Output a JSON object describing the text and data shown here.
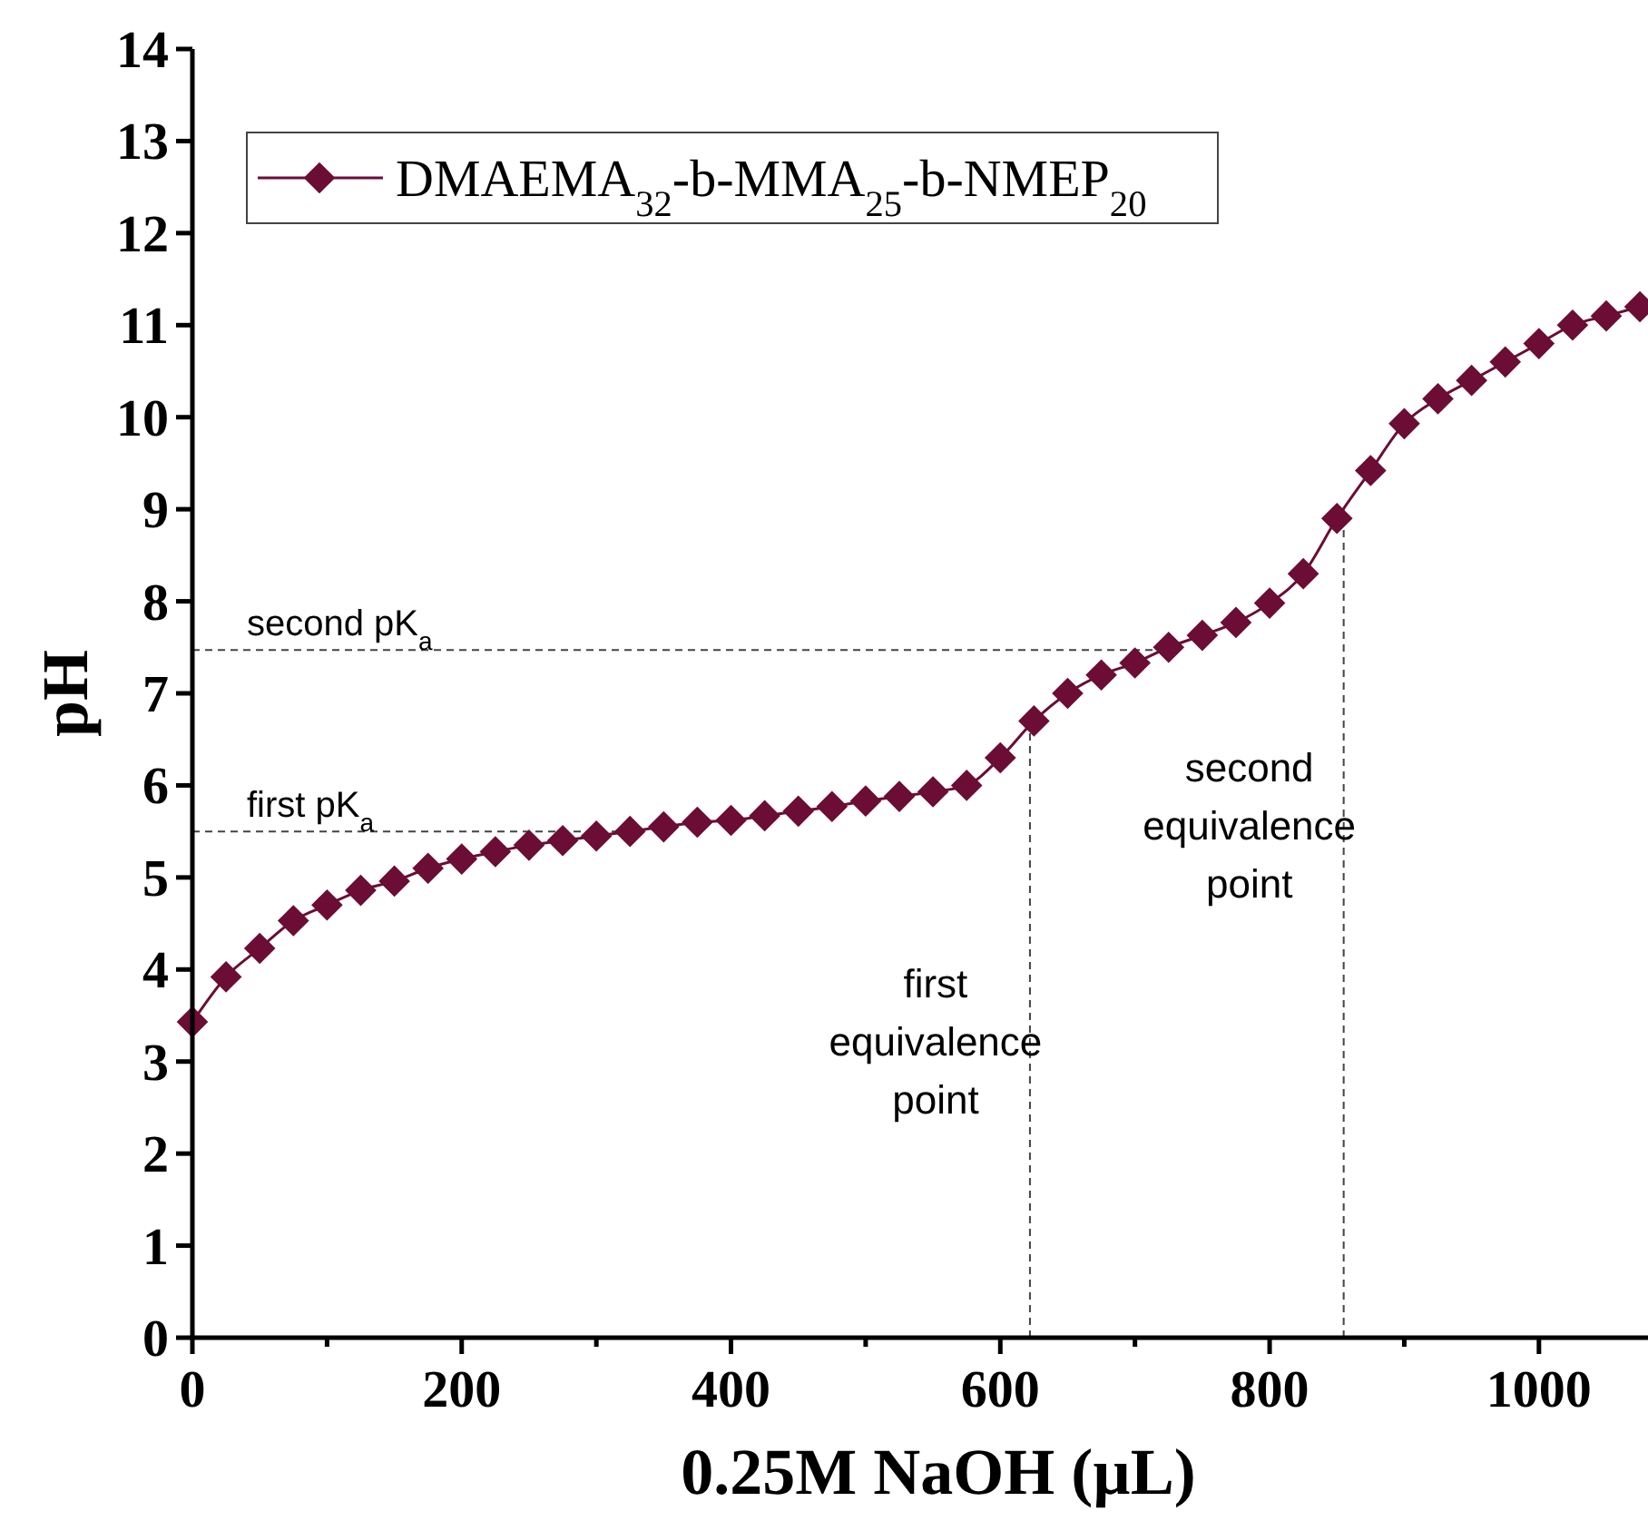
{
  "chart_data": {
    "type": "line",
    "xlabel": "0.25M NaOH (µL)",
    "ylabel": "pH",
    "x": [
      0,
      25,
      50,
      75,
      100,
      125,
      150,
      175,
      200,
      225,
      250,
      275,
      300,
      325,
      350,
      375,
      400,
      425,
      450,
      475,
      500,
      525,
      550,
      575,
      600,
      625,
      650,
      675,
      700,
      725,
      750,
      775,
      800,
      825,
      850,
      875,
      900,
      925,
      950,
      975,
      1000,
      1025,
      1050,
      1075
    ],
    "series": [
      {
        "name": "DMAEMA$_{32}$-b-MMA$_{25}$-b-NMEP$_{20}$",
        "color": "#6b0d35",
        "values": [
          3.43,
          3.92,
          4.23,
          4.53,
          4.7,
          4.86,
          4.96,
          5.1,
          5.2,
          5.28,
          5.35,
          5.4,
          5.45,
          5.5,
          5.55,
          5.6,
          5.62,
          5.67,
          5.72,
          5.77,
          5.83,
          5.88,
          5.93,
          6.0,
          6.3,
          6.7,
          7.0,
          7.2,
          7.33,
          7.5,
          7.63,
          7.77,
          7.98,
          8.3,
          8.9,
          9.42,
          9.93,
          10.2,
          10.4,
          10.6,
          10.8,
          11.0,
          11.1,
          11.2
        ]
      }
    ],
    "xlim": [
      0,
      1081
    ],
    "xticks": [
      0,
      {
        "value": 100,
        "label": null
      },
      200,
      {
        "value": 300,
        "label": null
      },
      400,
      {
        "value": 500,
        "label": null
      },
      600,
      {
        "value": 700,
        "label": null
      },
      800,
      {
        "value": 900,
        "label": null
      },
      1000
    ],
    "ylim": [
      0,
      14
    ],
    "yticks": [
      0,
      1,
      2,
      3,
      4,
      5,
      6,
      7,
      8,
      9,
      10,
      11,
      12,
      13,
      14
    ],
    "ref_lines": [
      {
        "axis": "y",
        "value": 5.5,
        "label": "first pK$_{a}$",
        "color": "#444444",
        "line_style": "dashed"
      },
      {
        "axis": "y",
        "value": 7.47,
        "label": "second pK$_{a}$",
        "color": "#444444",
        "line_style": "dashed"
      },
      {
        "axis": "x",
        "value": 622,
        "label": "first\nequivalence\npoint",
        "color": "#444444",
        "line_style": "dashed"
      },
      {
        "axis": "x",
        "value": 855,
        "label": "second\nequivalence\npoint",
        "color": "#444444",
        "line_style": "dashed"
      }
    ],
    "marker": "diamond",
    "line_style": "solid",
    "legend": "top left",
    "grid": false
  }
}
